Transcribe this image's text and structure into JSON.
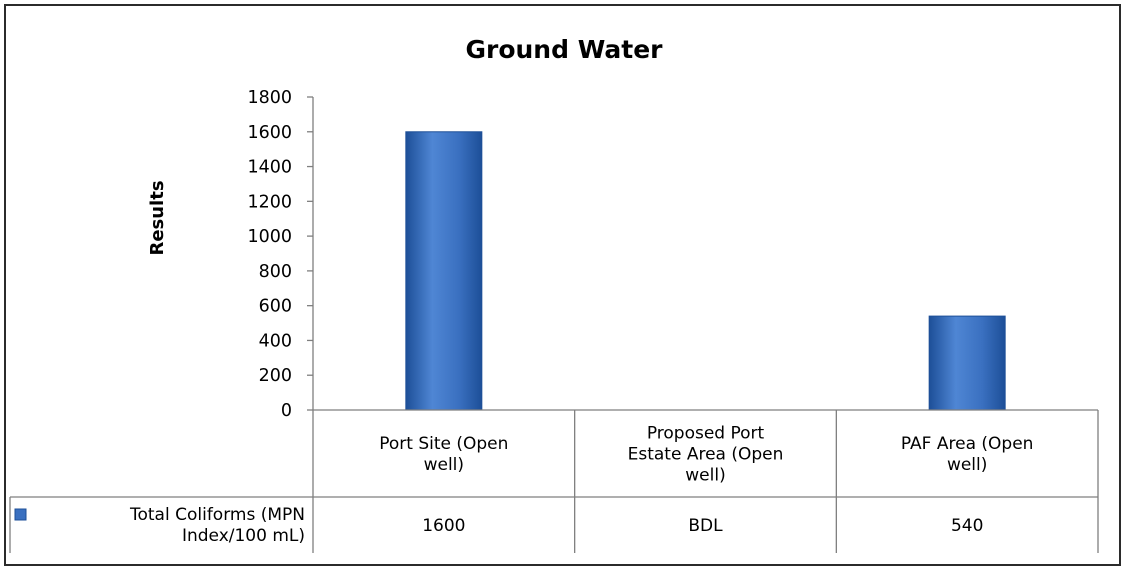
{
  "chart_data": {
    "type": "bar",
    "title": "Ground Water",
    "ylabel": "Results",
    "xlabel": "",
    "ylim": [
      0,
      1800
    ],
    "yticks": [
      0,
      200,
      400,
      600,
      800,
      1000,
      1200,
      1400,
      1600,
      1800
    ],
    "grid": false,
    "legend": "data-table",
    "categories": [
      [
        "Port Site (Open",
        "well)"
      ],
      [
        "Proposed Port",
        "Estate Area (Open",
        "well)"
      ],
      [
        "PAF Area (Open",
        "well)"
      ]
    ],
    "series": [
      {
        "name": [
          "Total Coliforms (MPN",
          "Index/100 mL)"
        ],
        "values": [
          1600,
          0,
          540
        ],
        "labels": [
          "1600",
          "BDL",
          "540"
        ],
        "color": "#2e63b0"
      }
    ]
  },
  "colors": {
    "bar_light": "#6a9de0",
    "bar_mid": "#3a70c0",
    "bar_dark": "#1d4f98",
    "axis": "#7f7f7f"
  }
}
